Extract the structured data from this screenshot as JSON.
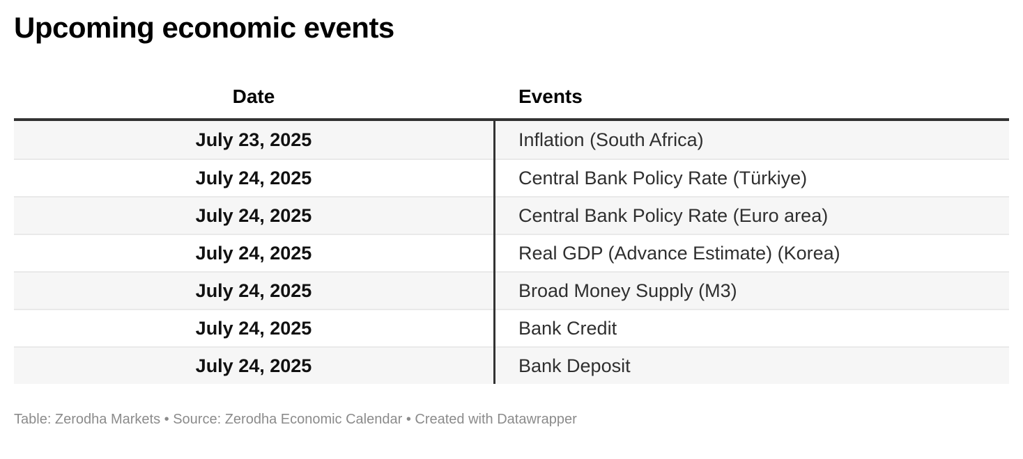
{
  "chart_data": {
    "type": "table",
    "title": "Upcoming economic events",
    "columns": [
      "Date",
      "Events"
    ],
    "rows": [
      [
        "July 23, 2025",
        "Inflation (South Africa)"
      ],
      [
        "July 24, 2025",
        "Central Bank Policy Rate (Türkiye)"
      ],
      [
        "July 24, 2025",
        "Central Bank Policy Rate (Euro area)"
      ],
      [
        "July 24, 2025",
        "Real GDP (Advance Estimate) (Korea)"
      ],
      [
        "July 24, 2025",
        "Broad Money Supply (M3)"
      ],
      [
        "July 24, 2025",
        "Bank Credit"
      ],
      [
        "July 24, 2025",
        "Bank Deposit"
      ]
    ],
    "layout_hints": {
      "alternating_row_shading": true,
      "date_column_alignment": "center",
      "events_column_alignment": "left",
      "header_rule": "thick-dark",
      "column_divider": "vertical-dark-line"
    }
  },
  "footer": {
    "text": "Table: Zerodha Markets • Source: Zerodha Economic Calendar • Created with Datawrapper"
  },
  "colors": {
    "title_text": "#000000",
    "body_text": "#2f2f2f",
    "date_text": "#111111",
    "rule_dark": "#333333",
    "row_separator": "#e9e9e9",
    "alt_row_background": "#f6f6f6",
    "footer_text": "#8b8b8b",
    "background": "#ffffff"
  }
}
